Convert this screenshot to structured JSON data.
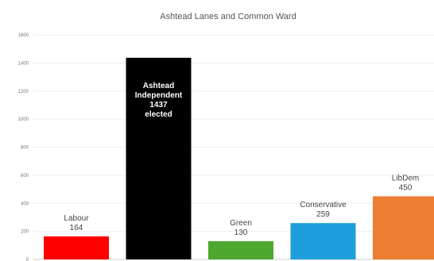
{
  "chart_data": {
    "type": "bar",
    "title": "Ashtead Lanes and Common Ward",
    "categories": [
      "Labour",
      "Ashtead Independent",
      "Green",
      "Conservative",
      "LibDem"
    ],
    "values": [
      164,
      1437,
      130,
      259,
      450
    ],
    "ylim": [
      0,
      1600
    ],
    "yticks": [
      0,
      200,
      400,
      600,
      800,
      1000,
      1200,
      1400,
      1600
    ],
    "grid": true,
    "legend": "none",
    "bars": [
      {
        "name": "Labour",
        "value": 164,
        "color": "#ff0000",
        "label_lines": [
          "Labour",
          "164"
        ],
        "label_position": "above"
      },
      {
        "name": "Ashtead Independent",
        "value": 1437,
        "color": "#000000",
        "label_lines": [
          "Ashtead",
          "Independent",
          "1437",
          "elected"
        ],
        "label_position": "inside"
      },
      {
        "name": "Green",
        "value": 130,
        "color": "#4ea72e",
        "label_lines": [
          "Green",
          "130"
        ],
        "label_position": "above"
      },
      {
        "name": "Conservative",
        "value": 259,
        "color": "#1e9fdc",
        "label_lines": [
          "Conservative",
          "259"
        ],
        "label_position": "above"
      },
      {
        "name": "LibDem",
        "value": 450,
        "color": "#ed7d31",
        "label_lines": [
          "LibDem",
          "450"
        ],
        "label_position": "above"
      }
    ]
  }
}
